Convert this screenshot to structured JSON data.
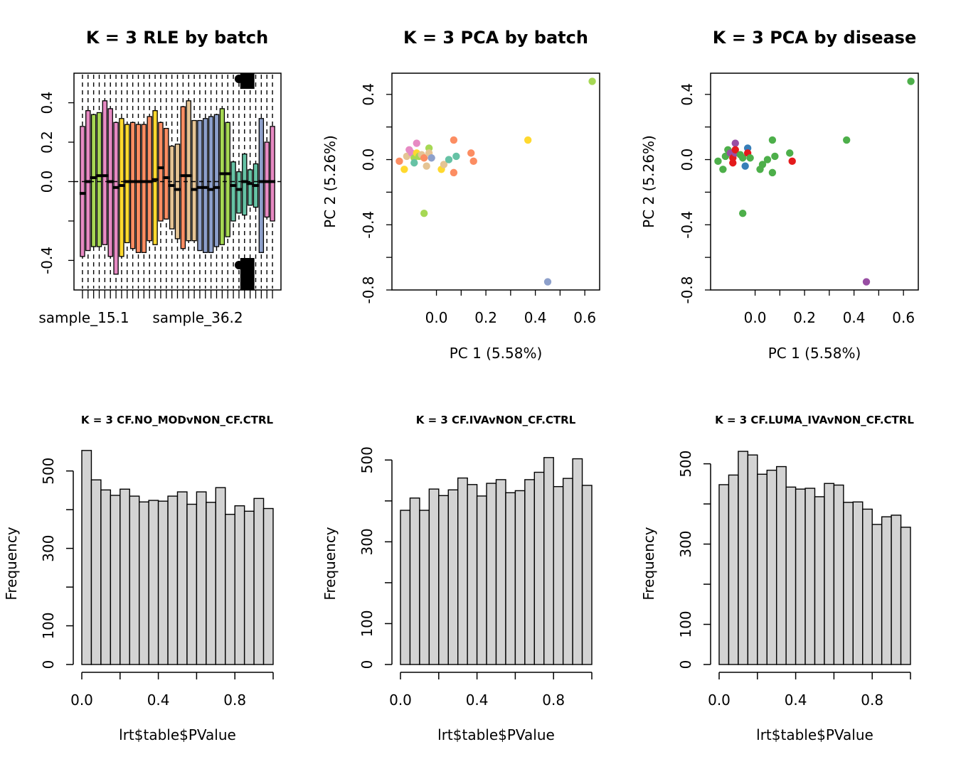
{
  "figure": {
    "panels": [
      {
        "title": "K = 3 RLE by batch"
      },
      {
        "title": "K = 3 PCA by batch"
      },
      {
        "title": "K = 3 PCA by disease"
      },
      {
        "title": "K = 3 CF.NO_MODvNON_CF.CTRL"
      },
      {
        "title": "K = 3 CF.IVAvNON_CF.CTRL"
      },
      {
        "title": "K = 3 CF.LUMA_IVAvNON_CF.CTRL"
      }
    ]
  },
  "chart_data": [
    {
      "type": "box",
      "title": "K = 3 RLE by batch",
      "xlabel": "",
      "ylabel": "",
      "x_tick_labels": [
        "sample_15.1",
        "sample_36.2"
      ],
      "y_ticks": [
        "-0.4",
        "0.0",
        "0.2",
        "0.4"
      ],
      "ylim": [
        -0.55,
        0.55
      ],
      "reference_line_y": 0,
      "boxes": [
        {
          "q1": -0.38,
          "q3": 0.28,
          "median": -0.06,
          "color": "#E78AC3"
        },
        {
          "q1": -0.35,
          "q3": 0.36,
          "median": 0.0,
          "color": "#E78AC3"
        },
        {
          "q1": -0.33,
          "q3": 0.34,
          "median": 0.02,
          "color": "#A6D854"
        },
        {
          "q1": -0.33,
          "q3": 0.35,
          "median": 0.03,
          "color": "#A6D854"
        },
        {
          "q1": -0.32,
          "q3": 0.41,
          "median": 0.03,
          "color": "#E78AC3"
        },
        {
          "q1": -0.38,
          "q3": 0.37,
          "median": 0.0,
          "color": "#E78AC3"
        },
        {
          "q1": -0.47,
          "q3": 0.3,
          "median": -0.03,
          "color": "#E78AC3"
        },
        {
          "q1": -0.38,
          "q3": 0.32,
          "median": -0.02,
          "color": "#FFD92F"
        },
        {
          "q1": -0.31,
          "q3": 0.29,
          "median": 0.0,
          "color": "#FFD92F"
        },
        {
          "q1": -0.34,
          "q3": 0.3,
          "median": 0.0,
          "color": "#FC8D62"
        },
        {
          "q1": -0.36,
          "q3": 0.29,
          "median": 0.0,
          "color": "#FC8D62"
        },
        {
          "q1": -0.36,
          "q3": 0.29,
          "median": 0.0,
          "color": "#FC8D62"
        },
        {
          "q1": -0.3,
          "q3": 0.33,
          "median": 0.0,
          "color": "#FC8D62"
        },
        {
          "q1": -0.32,
          "q3": 0.36,
          "median": 0.01,
          "color": "#FFD92F"
        },
        {
          "q1": -0.2,
          "q3": 0.3,
          "median": 0.07,
          "color": "#FC8D62"
        },
        {
          "q1": -0.19,
          "q3": 0.27,
          "median": 0.02,
          "color": "#FC8D62"
        },
        {
          "q1": -0.24,
          "q3": 0.18,
          "median": -0.02,
          "color": "#E5C494"
        },
        {
          "q1": -0.29,
          "q3": 0.19,
          "median": -0.04,
          "color": "#E5C494"
        },
        {
          "q1": -0.34,
          "q3": 0.38,
          "median": 0.03,
          "color": "#FC8D62"
        },
        {
          "q1": -0.3,
          "q3": 0.41,
          "median": 0.03,
          "color": "#E5C494"
        },
        {
          "q1": -0.3,
          "q3": 0.31,
          "median": -0.04,
          "color": "#E5C494"
        },
        {
          "q1": -0.35,
          "q3": 0.31,
          "median": -0.03,
          "color": "#8DA0CB"
        },
        {
          "q1": -0.36,
          "q3": 0.32,
          "median": -0.03,
          "color": "#8DA0CB"
        },
        {
          "q1": -0.36,
          "q3": 0.33,
          "median": -0.04,
          "color": "#8DA0CB"
        },
        {
          "q1": -0.33,
          "q3": 0.34,
          "median": -0.03,
          "color": "#8DA0CB"
        },
        {
          "q1": -0.32,
          "q3": 0.37,
          "median": 0.04,
          "color": "#A6D854"
        },
        {
          "q1": -0.28,
          "q3": 0.3,
          "median": 0.04,
          "color": "#A6D854"
        },
        {
          "q1": -0.2,
          "q3": 0.1,
          "median": -0.02,
          "color": "#66C2A5"
        },
        {
          "q1": -0.16,
          "q3": 0.05,
          "median": -0.04,
          "color": "#66C2A5"
        },
        {
          "q1": -0.17,
          "q3": 0.14,
          "median": 0.0,
          "color": "#66C2A5"
        },
        {
          "q1": -0.12,
          "q3": 0.06,
          "median": -0.01,
          "color": "#66C2A5"
        },
        {
          "q1": -0.13,
          "q3": 0.09,
          "median": -0.02,
          "color": "#66C2A5"
        },
        {
          "q1": -0.36,
          "q3": 0.32,
          "median": 0.0,
          "color": "#8DA0CB"
        },
        {
          "q1": -0.18,
          "q3": 0.2,
          "median": 0.0,
          "color": "#E78AC3"
        },
        {
          "q1": -0.2,
          "q3": 0.28,
          "median": 0.0,
          "color": "#E78AC3"
        }
      ]
    },
    {
      "type": "scatter",
      "title": "K = 3 PCA by batch",
      "xlabel": "PC 1 (5.58%)",
      "ylabel": "PC 2 (5.26%)",
      "x_ticks": [
        "0.0",
        "0.2",
        "0.4",
        "0.6"
      ],
      "y_ticks": [
        "-0.8",
        "-0.4",
        "0.0",
        "0.4"
      ],
      "xlim": [
        -0.18,
        0.66
      ],
      "ylim": [
        -0.8,
        0.53
      ],
      "points": [
        {
          "x": -0.15,
          "y": -0.01,
          "color": "#FC8D62"
        },
        {
          "x": -0.13,
          "y": -0.06,
          "color": "#FFD92F"
        },
        {
          "x": -0.12,
          "y": 0.02,
          "color": "#E5C494"
        },
        {
          "x": -0.11,
          "y": 0.06,
          "color": "#E78AC3"
        },
        {
          "x": -0.1,
          "y": 0.04,
          "color": "#E78AC3"
        },
        {
          "x": -0.09,
          "y": 0.01,
          "color": "#A6D854"
        },
        {
          "x": -0.09,
          "y": -0.02,
          "color": "#66C2A5"
        },
        {
          "x": -0.08,
          "y": 0.1,
          "color": "#E78AC3"
        },
        {
          "x": -0.08,
          "y": 0.04,
          "color": "#FFD92F"
        },
        {
          "x": -0.07,
          "y": 0.02,
          "color": "#A6D854"
        },
        {
          "x": -0.06,
          "y": 0.03,
          "color": "#E5C494"
        },
        {
          "x": -0.05,
          "y": 0.01,
          "color": "#FC8D62"
        },
        {
          "x": -0.05,
          "y": -0.33,
          "color": "#A6D854"
        },
        {
          "x": -0.04,
          "y": -0.04,
          "color": "#E5C494"
        },
        {
          "x": -0.03,
          "y": 0.07,
          "color": "#A6D854"
        },
        {
          "x": -0.03,
          "y": 0.04,
          "color": "#E5C494"
        },
        {
          "x": -0.02,
          "y": 0.01,
          "color": "#8DA0CB"
        },
        {
          "x": 0.02,
          "y": -0.06,
          "color": "#FFD92F"
        },
        {
          "x": 0.03,
          "y": -0.03,
          "color": "#E5C494"
        },
        {
          "x": 0.05,
          "y": 0.0,
          "color": "#66C2A5"
        },
        {
          "x": 0.07,
          "y": 0.12,
          "color": "#FC8D62"
        },
        {
          "x": 0.07,
          "y": -0.08,
          "color": "#FC8D62"
        },
        {
          "x": 0.08,
          "y": 0.02,
          "color": "#66C2A5"
        },
        {
          "x": 0.14,
          "y": 0.04,
          "color": "#FC8D62"
        },
        {
          "x": 0.15,
          "y": -0.01,
          "color": "#FC8D62"
        },
        {
          "x": 0.37,
          "y": 0.12,
          "color": "#FFD92F"
        },
        {
          "x": 0.45,
          "y": -0.75,
          "color": "#8DA0CB"
        },
        {
          "x": 0.63,
          "y": 0.48,
          "color": "#A6D854"
        }
      ]
    },
    {
      "type": "scatter",
      "title": "K = 3 PCA by disease",
      "xlabel": "PC 1 (5.58%)",
      "ylabel": "PC 2 (5.26%)",
      "x_ticks": [
        "0.0",
        "0.2",
        "0.4",
        "0.6"
      ],
      "y_ticks": [
        "-0.8",
        "-0.4",
        "0.0",
        "0.4"
      ],
      "xlim": [
        -0.18,
        0.66
      ],
      "ylim": [
        -0.8,
        0.53
      ],
      "points": [
        {
          "x": -0.15,
          "y": -0.01,
          "color": "#4DAF4A"
        },
        {
          "x": -0.13,
          "y": -0.06,
          "color": "#4DAF4A"
        },
        {
          "x": -0.12,
          "y": 0.02,
          "color": "#4DAF4A"
        },
        {
          "x": -0.11,
          "y": 0.06,
          "color": "#4DAF4A"
        },
        {
          "x": -0.1,
          "y": 0.04,
          "color": "#984EA3"
        },
        {
          "x": -0.09,
          "y": 0.01,
          "color": "#E41A1C"
        },
        {
          "x": -0.09,
          "y": -0.02,
          "color": "#E41A1C"
        },
        {
          "x": -0.08,
          "y": 0.1,
          "color": "#984EA3"
        },
        {
          "x": -0.08,
          "y": 0.04,
          "color": "#984EA3"
        },
        {
          "x": -0.08,
          "y": 0.06,
          "color": "#E41A1C"
        },
        {
          "x": -0.06,
          "y": 0.03,
          "color": "#4DAF4A"
        },
        {
          "x": -0.05,
          "y": 0.01,
          "color": "#4DAF4A"
        },
        {
          "x": -0.05,
          "y": -0.33,
          "color": "#4DAF4A"
        },
        {
          "x": -0.04,
          "y": -0.04,
          "color": "#377EB8"
        },
        {
          "x": -0.03,
          "y": 0.07,
          "color": "#377EB8"
        },
        {
          "x": -0.03,
          "y": 0.04,
          "color": "#E41A1C"
        },
        {
          "x": -0.02,
          "y": 0.01,
          "color": "#4DAF4A"
        },
        {
          "x": 0.02,
          "y": -0.06,
          "color": "#4DAF4A"
        },
        {
          "x": 0.03,
          "y": -0.03,
          "color": "#4DAF4A"
        },
        {
          "x": 0.05,
          "y": 0.0,
          "color": "#4DAF4A"
        },
        {
          "x": 0.07,
          "y": 0.12,
          "color": "#4DAF4A"
        },
        {
          "x": 0.07,
          "y": -0.08,
          "color": "#4DAF4A"
        },
        {
          "x": 0.08,
          "y": 0.02,
          "color": "#4DAF4A"
        },
        {
          "x": 0.14,
          "y": 0.04,
          "color": "#4DAF4A"
        },
        {
          "x": 0.15,
          "y": -0.01,
          "color": "#E41A1C"
        },
        {
          "x": 0.37,
          "y": 0.12,
          "color": "#4DAF4A"
        },
        {
          "x": 0.45,
          "y": -0.75,
          "color": "#984EA3"
        },
        {
          "x": 0.63,
          "y": 0.48,
          "color": "#4DAF4A"
        }
      ]
    },
    {
      "type": "histogram",
      "title": "K = 3 CF.NO_MODvNON_CF.CTRL",
      "xlabel": "lrt$table$PValue",
      "ylabel": "Frequency",
      "x_ticks": [
        "0.0",
        "0.4",
        "0.8"
      ],
      "y_ticks": [
        "0",
        "100",
        "300",
        "500"
      ],
      "xlim": [
        0,
        1
      ],
      "ylim": [
        0,
        560
      ],
      "bin_width": 0.05,
      "values": [
        553,
        477,
        451,
        437,
        453,
        435,
        420,
        424,
        422,
        435,
        446,
        414,
        446,
        419,
        457,
        388,
        410,
        396,
        429,
        403
      ]
    },
    {
      "type": "histogram",
      "title": "K = 3 CF.IVAvNON_CF.CTRL",
      "xlabel": "lrt$table$PValue",
      "ylabel": "Frequency",
      "x_ticks": [
        "0.0",
        "0.4",
        "0.8"
      ],
      "y_ticks": [
        "0",
        "100",
        "300",
        "500"
      ],
      "xlim": [
        0,
        1
      ],
      "ylim": [
        0,
        530
      ],
      "bin_width": 0.05,
      "values": [
        377,
        407,
        377,
        429,
        413,
        427,
        456,
        440,
        412,
        443,
        452,
        420,
        425,
        452,
        470,
        506,
        435,
        455,
        503,
        438
      ]
    },
    {
      "type": "histogram",
      "title": "K = 3 CF.LUMA_IVAvNON_CF.CTRL",
      "xlabel": "lrt$table$PValue",
      "ylabel": "Frequency",
      "x_ticks": [
        "0.0",
        "0.4",
        "0.8"
      ],
      "y_ticks": [
        "0",
        "100",
        "300",
        "500"
      ],
      "xlim": [
        0,
        1
      ],
      "ylim": [
        0,
        540
      ],
      "bin_width": 0.05,
      "values": [
        448,
        472,
        531,
        522,
        474,
        484,
        493,
        442,
        437,
        439,
        418,
        451,
        447,
        404,
        405,
        387,
        349,
        368,
        372,
        342
      ]
    }
  ]
}
